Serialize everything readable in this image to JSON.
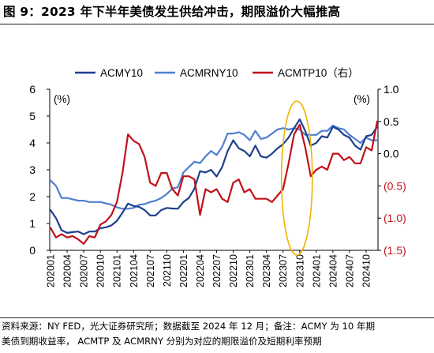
{
  "title": "图 9：2023 年下半年美债发生供给冲击，期限溢价大幅推高",
  "source": {
    "line1": "资料来源：NY FED，光大证券研究所；数据截至 2024 年 12 月；备注：ACMY 为 10 年期",
    "line2": "美债到期收益率， ACMTP 及 ACMRNY 分别为对应的期限溢价及短期利率预期"
  },
  "colors": {
    "ACMY10": "#1f3f8f",
    "ACMRNY10": "#4f7fd0",
    "ACMTP10": "#c0111b",
    "ellipse": "#f0b400",
    "right_tick_negative": "#c0111b"
  },
  "chart_data": {
    "type": "line",
    "x": [
      "202001",
      "202002",
      "202003",
      "202004",
      "202005",
      "202006",
      "202007",
      "202008",
      "202009",
      "202010",
      "202011",
      "202012",
      "202101",
      "202102",
      "202103",
      "202104",
      "202105",
      "202106",
      "202107",
      "202108",
      "202109",
      "202110",
      "202111",
      "202112",
      "202201",
      "202202",
      "202203",
      "202204",
      "202205",
      "202206",
      "202207",
      "202208",
      "202209",
      "202210",
      "202211",
      "202212",
      "202301",
      "202302",
      "202303",
      "202304",
      "202305",
      "202306",
      "202307",
      "202308",
      "202309",
      "202310",
      "202311",
      "202312",
      "202401",
      "202402",
      "202403",
      "202404",
      "202405",
      "202406",
      "202407",
      "202408",
      "202409",
      "202410",
      "202411",
      "202412"
    ],
    "x_tick_labels": [
      "202001",
      "202004",
      "202007",
      "202010",
      "202101",
      "202104",
      "202107",
      "202110",
      "202201",
      "202204",
      "202207",
      "202210",
      "202301",
      "202304",
      "202307",
      "202310",
      "202401",
      "202404",
      "202407",
      "202410"
    ],
    "series": [
      {
        "name": "ACMY10",
        "axis": "left",
        "values": [
          1.5,
          1.2,
          0.75,
          0.65,
          0.68,
          0.7,
          0.6,
          0.7,
          0.7,
          0.82,
          0.86,
          0.93,
          1.1,
          1.4,
          1.74,
          1.65,
          1.62,
          1.5,
          1.3,
          1.3,
          1.5,
          1.58,
          1.56,
          1.55,
          1.8,
          1.95,
          2.3,
          2.95,
          2.9,
          3.0,
          2.75,
          3.1,
          3.7,
          4.1,
          3.8,
          3.7,
          3.5,
          3.9,
          3.5,
          3.45,
          3.6,
          3.8,
          3.95,
          4.2,
          4.55,
          4.88,
          4.45,
          3.9,
          4.0,
          4.25,
          4.2,
          4.6,
          4.5,
          4.3,
          4.2,
          3.9,
          3.75,
          4.25,
          4.3,
          4.6
        ]
      },
      {
        "name": "ACMRNY10",
        "axis": "left",
        "values": [
          2.6,
          2.4,
          1.95,
          1.95,
          1.9,
          1.85,
          1.85,
          1.8,
          1.8,
          1.8,
          1.75,
          1.7,
          1.6,
          1.55,
          1.55,
          1.58,
          1.7,
          1.72,
          1.8,
          1.85,
          1.95,
          2.1,
          2.3,
          2.35,
          2.9,
          3.1,
          3.3,
          3.25,
          3.5,
          3.7,
          3.55,
          3.85,
          4.35,
          4.35,
          4.4,
          4.3,
          4.1,
          4.45,
          4.15,
          4.2,
          4.35,
          4.5,
          4.55,
          4.5,
          4.55,
          4.5,
          4.3,
          4.3,
          4.3,
          4.45,
          4.45,
          4.65,
          4.55,
          4.5,
          4.3,
          4.15,
          4.0,
          4.2,
          4.1,
          4.1
        ]
      },
      {
        "name": "ACMTP10",
        "axis": "right",
        "values": [
          -1.15,
          -1.3,
          -1.25,
          -1.3,
          -1.28,
          -1.33,
          -1.4,
          -1.28,
          -1.3,
          -1.1,
          -1.05,
          -0.95,
          -0.75,
          -0.3,
          0.3,
          0.2,
          0.15,
          -0.05,
          -0.45,
          -0.5,
          -0.3,
          -0.3,
          -0.55,
          -0.65,
          -0.35,
          -0.35,
          -0.4,
          -0.95,
          -0.55,
          -0.6,
          -0.55,
          -0.7,
          -0.75,
          -0.45,
          -0.4,
          -0.6,
          -0.55,
          -0.7,
          -0.7,
          -0.7,
          -0.75,
          -0.65,
          -0.55,
          -0.15,
          0.3,
          0.45,
          0.1,
          -0.35,
          -0.25,
          -0.2,
          -0.25,
          0.0,
          0.0,
          -0.1,
          -0.05,
          -0.15,
          -0.15,
          0.1,
          0.05,
          0.5
        ]
      }
    ],
    "legend": [
      "ACMY10",
      "ACMRNY10",
      "ACMTP10（右）"
    ],
    "legend_position": "top",
    "left_axis": {
      "unit": "(%)",
      "ylim": [
        0,
        6
      ],
      "ticks": [
        "0",
        "1",
        "2",
        "3",
        "4",
        "5",
        "6"
      ]
    },
    "right_axis": {
      "unit": "(%)",
      "ylim": [
        -1.5,
        1.0
      ],
      "ticks": [
        {
          "v": 1.0,
          "label": "1.0"
        },
        {
          "v": 0.5,
          "label": "0.5"
        },
        {
          "v": 0.0,
          "label": "0.0"
        },
        {
          "v": -0.5,
          "label": "(0.5)"
        },
        {
          "v": -1.0,
          "label": "(1.0)"
        },
        {
          "v": -1.5,
          "label": "(1.5)"
        }
      ]
    },
    "grid": false,
    "annotations": [
      {
        "type": "ellipse",
        "x_from": "202307",
        "x_to": "202312",
        "y_from": 0.0,
        "y_to": 5.5
      }
    ]
  }
}
